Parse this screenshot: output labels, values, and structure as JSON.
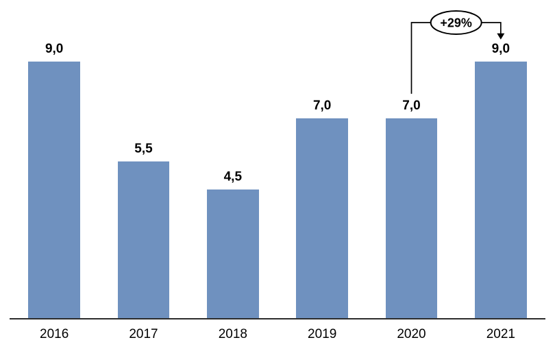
{
  "chart_data": {
    "type": "bar",
    "title": "",
    "xlabel": "",
    "ylabel": "",
    "categories": [
      "2016",
      "2017",
      "2018",
      "2019",
      "2020",
      "2021"
    ],
    "values": [
      9.0,
      5.5,
      4.5,
      7.0,
      7.0,
      9.0
    ],
    "value_labels": [
      "9,0",
      "5,5",
      "4,5",
      "7,0",
      "7,0",
      "9,0"
    ],
    "ylim": [
      0,
      10
    ],
    "grid": false,
    "legend": false,
    "bar_color": "#6f91bf",
    "axis_line_color": "#2b2b2b",
    "annotation": {
      "label": "+29%",
      "from_category": "2020",
      "to_category": "2021",
      "line_color": "#000000",
      "bubble_fill": "#ffffff",
      "bubble_stroke": "#000000"
    }
  }
}
